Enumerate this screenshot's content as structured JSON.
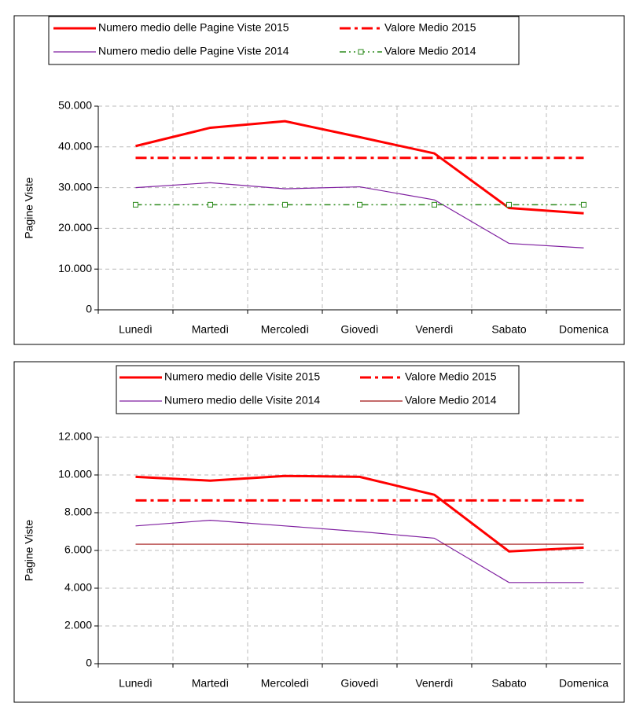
{
  "chart_data": [
    {
      "type": "line",
      "y_label": "Pagine Viste",
      "categories": [
        "Lunedì",
        "Martedì",
        "Mercoledì",
        "Giovedì",
        "Venerdì",
        "Sabato",
        "Domenica"
      ],
      "ylim": [
        0,
        50000
      ],
      "yticks": [
        0,
        {
          "value": 10000,
          "label": "10.000"
        },
        {
          "value": 20000,
          "label": "20.000"
        },
        {
          "value": 30000,
          "label": "30.000"
        },
        {
          "value": 40000,
          "label": "40.000"
        },
        {
          "value": 50000,
          "label": "50.000"
        }
      ],
      "grid": true,
      "series": [
        {
          "name": "Numero medio delle Pagine Viste 2015",
          "color": "#ff0000",
          "style": "solid",
          "line_width": 3,
          "values": [
            40200,
            44700,
            46300,
            42400,
            38400,
            25000,
            23700
          ]
        },
        {
          "name": "Valore Medio 2015",
          "color": "#ff0000",
          "style": "dashdot",
          "line_width": 3,
          "values": [
            37300,
            37300,
            37300,
            37300,
            37300,
            37300,
            37300
          ]
        },
        {
          "name": "Numero medio delle Pagine Viste 2014",
          "color": "#7f1fa0",
          "style": "solid",
          "line_width": 1.2,
          "values": [
            30000,
            31200,
            29700,
            30200,
            27000,
            16300,
            15200
          ]
        },
        {
          "name": "Valore Medio 2014",
          "color": "#2e8b1e",
          "style": "dashdotdot",
          "line_width": 1.5,
          "marker": "square",
          "values": [
            25800,
            25800,
            25800,
            25800,
            25800,
            25800,
            25800
          ]
        }
      ]
    },
    {
      "type": "line",
      "y_label": "Pagine Viste",
      "categories": [
        "Lunedì",
        "Martedì",
        "Mercoledì",
        "Giovedì",
        "Venerdì",
        "Sabato",
        "Domenica"
      ],
      "ylim": [
        0,
        12000
      ],
      "yticks": [
        0,
        {
          "value": 2000,
          "label": "2.000"
        },
        {
          "value": 4000,
          "label": "4.000"
        },
        {
          "value": 6000,
          "label": "6.000"
        },
        {
          "value": 8000,
          "label": "8.000"
        },
        {
          "value": 10000,
          "label": "10.000"
        },
        {
          "value": 12000,
          "label": "12.000"
        }
      ],
      "grid": true,
      "series": [
        {
          "name": "Numero medio delle Visite 2015",
          "color": "#ff0000",
          "style": "solid",
          "line_width": 3,
          "values": [
            9900,
            9700,
            9950,
            9900,
            8950,
            5950,
            6150
          ]
        },
        {
          "name": "Valore Medio 2015",
          "color": "#ff0000",
          "style": "dashdot",
          "line_width": 3,
          "values": [
            8650,
            8650,
            8650,
            8650,
            8650,
            8650,
            8650
          ]
        },
        {
          "name": "Numero medio delle Visite 2014",
          "color": "#7f1fa0",
          "style": "solid",
          "line_width": 1.2,
          "values": [
            7300,
            7600,
            7300,
            7000,
            6650,
            4300,
            4300
          ]
        },
        {
          "name": "Valore Medio 2014",
          "color": "#a01010",
          "style": "solid",
          "line_width": 1.2,
          "values": [
            6330,
            6330,
            6330,
            6330,
            6330,
            6330,
            6330
          ]
        }
      ]
    }
  ]
}
